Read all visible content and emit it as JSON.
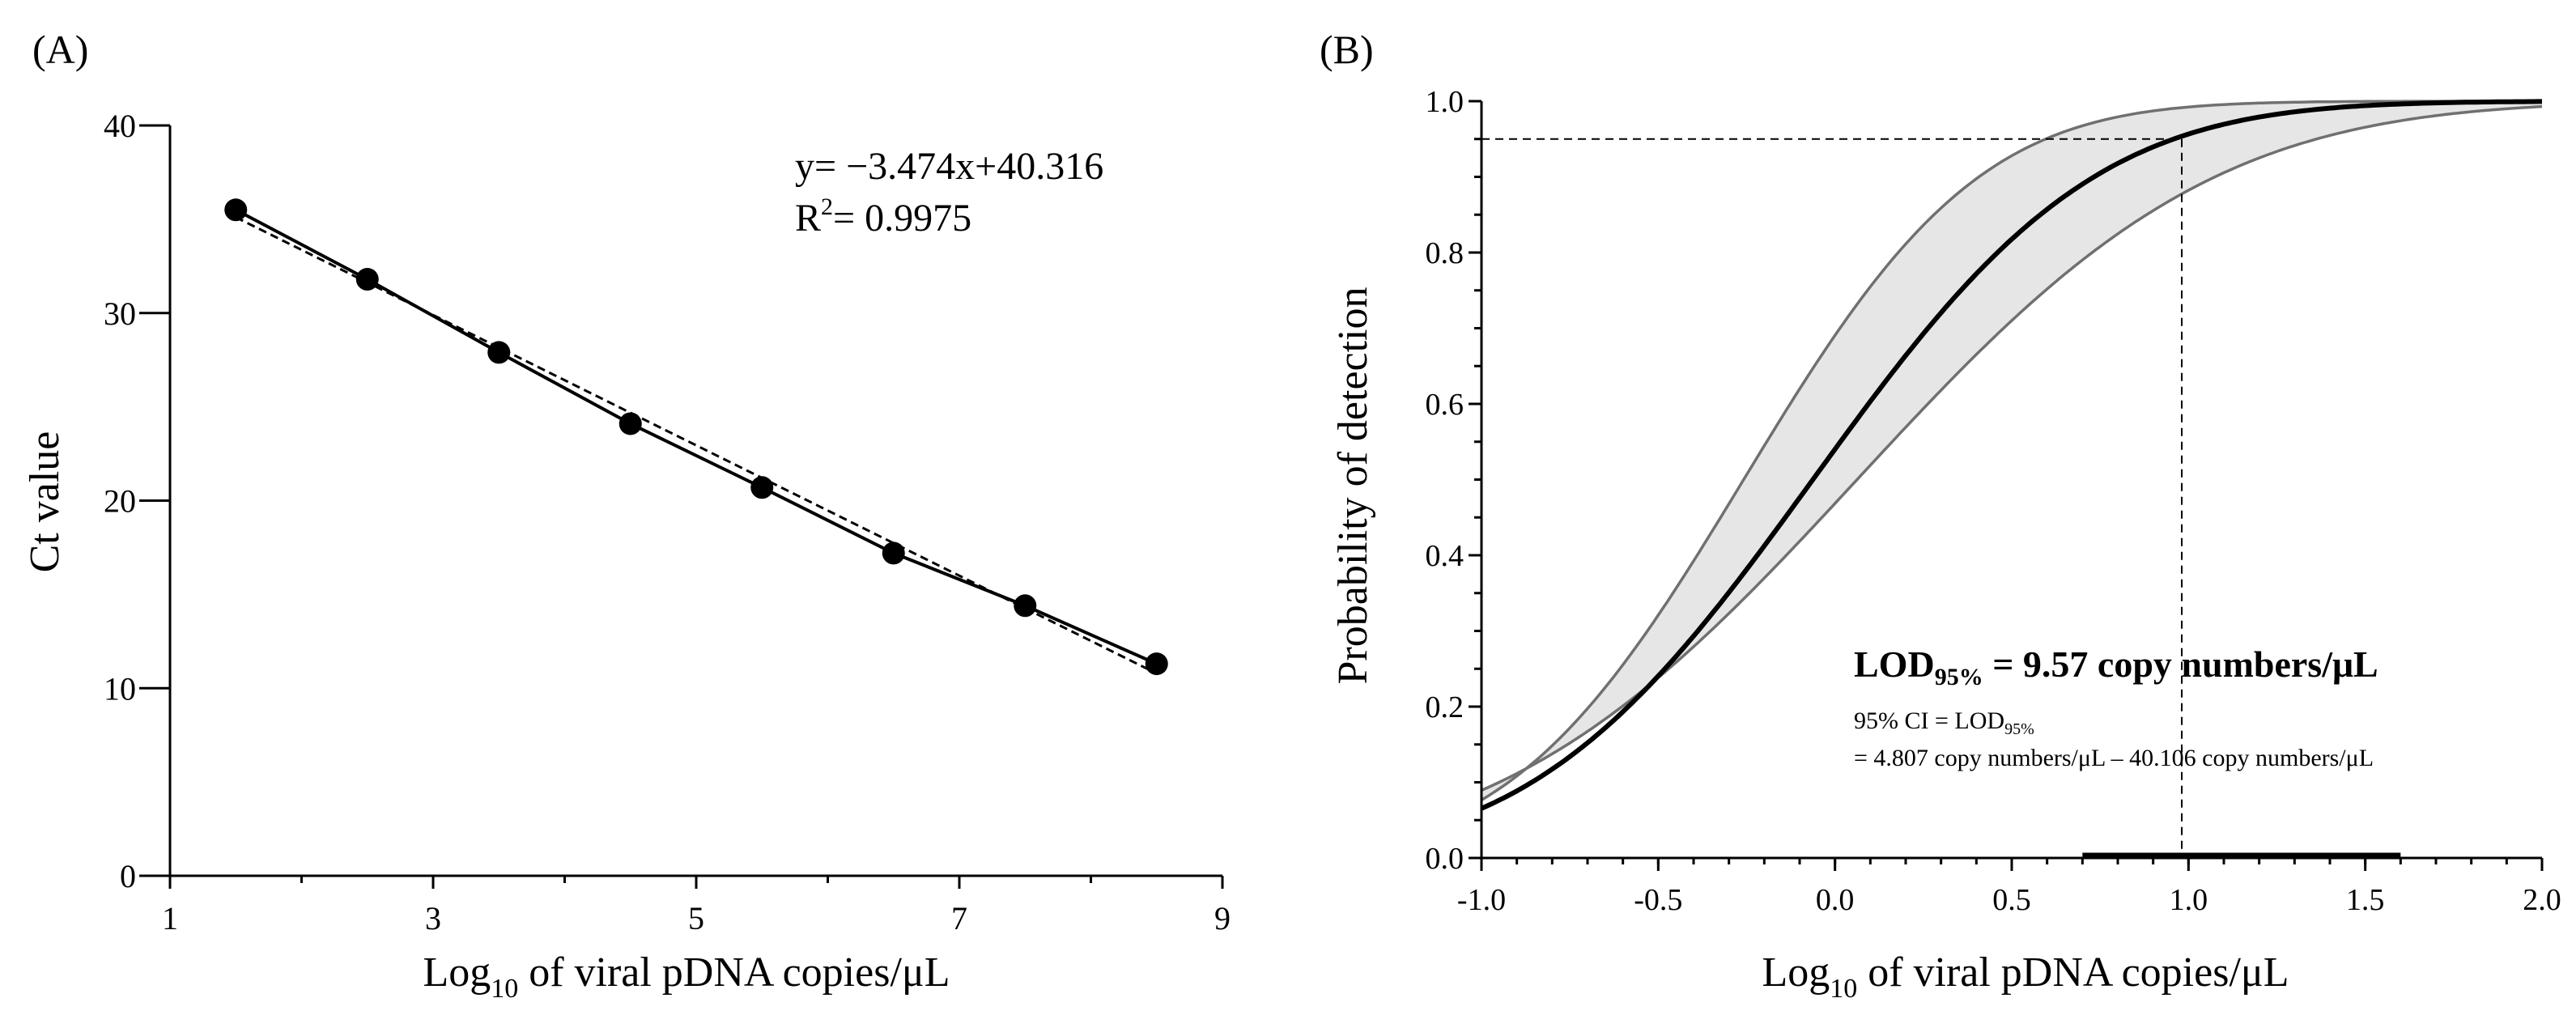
{
  "chart_data": [
    {
      "type": "scatter",
      "panel": "(A)",
      "ylabel": "Ct value",
      "xlabel_prefix": "Log",
      "xlabel_sub": "10",
      "xlabel_suffix": " of viral pDNA copies/μL",
      "xlim": [
        1,
        9
      ],
      "ylim": [
        0,
        40
      ],
      "xticks": [
        1,
        3,
        5,
        7,
        9
      ],
      "yticks": [
        0,
        10,
        20,
        30,
        40
      ],
      "x": [
        1.5,
        2.5,
        3.5,
        4.5,
        5.5,
        6.5,
        7.5,
        8.5
      ],
      "y": [
        35.5,
        31.8,
        27.9,
        24.1,
        20.7,
        17.2,
        14.4,
        11.3
      ],
      "regression": {
        "slope": -3.474,
        "intercept": 40.316
      },
      "equation_text": "y= −3.474x+40.316",
      "r2_prefix": "R",
      "r2_sup": "2",
      "r2_suffix": "= 0.9975"
    },
    {
      "type": "line",
      "panel": "(B)",
      "ylabel": "Probability of detection",
      "xlabel_prefix": "Log",
      "xlabel_sub": "10",
      "xlabel_suffix": " of viral pDNA copies/μL",
      "xlim": [
        -1.0,
        2.0
      ],
      "ylim": [
        0.0,
        1.0
      ],
      "xticks": [
        "-1.0",
        "-0.5",
        "0.0",
        "0.5",
        "1.0",
        "1.5",
        "2.0"
      ],
      "yticks": [
        "0.0",
        "0.2",
        "0.4",
        "0.6",
        "0.8",
        "1.0"
      ],
      "probit_mid": -0.0625,
      "probit_sigma": 0.6206,
      "ci_upper_mid": -0.2583,
      "ci_upper_sigma": 0.5193,
      "ci_lower_mid": 0.0625,
      "ci_lower_sigma": 0.7902,
      "lod_x": 0.981,
      "lod_y": 0.95,
      "lod_ci_range": [
        0.7,
        1.6
      ],
      "lod_title_prefix": "LOD",
      "lod_title_sub": "95%",
      "lod_title_suffix": " = 9.57 copy numbers/μL",
      "ci_line1_prefix": "95% CI = LOD",
      "ci_line1_sub": "95%",
      "ci_line2": "= 4.807 copy numbers/μL – 40.106 copy numbers/μL"
    }
  ]
}
